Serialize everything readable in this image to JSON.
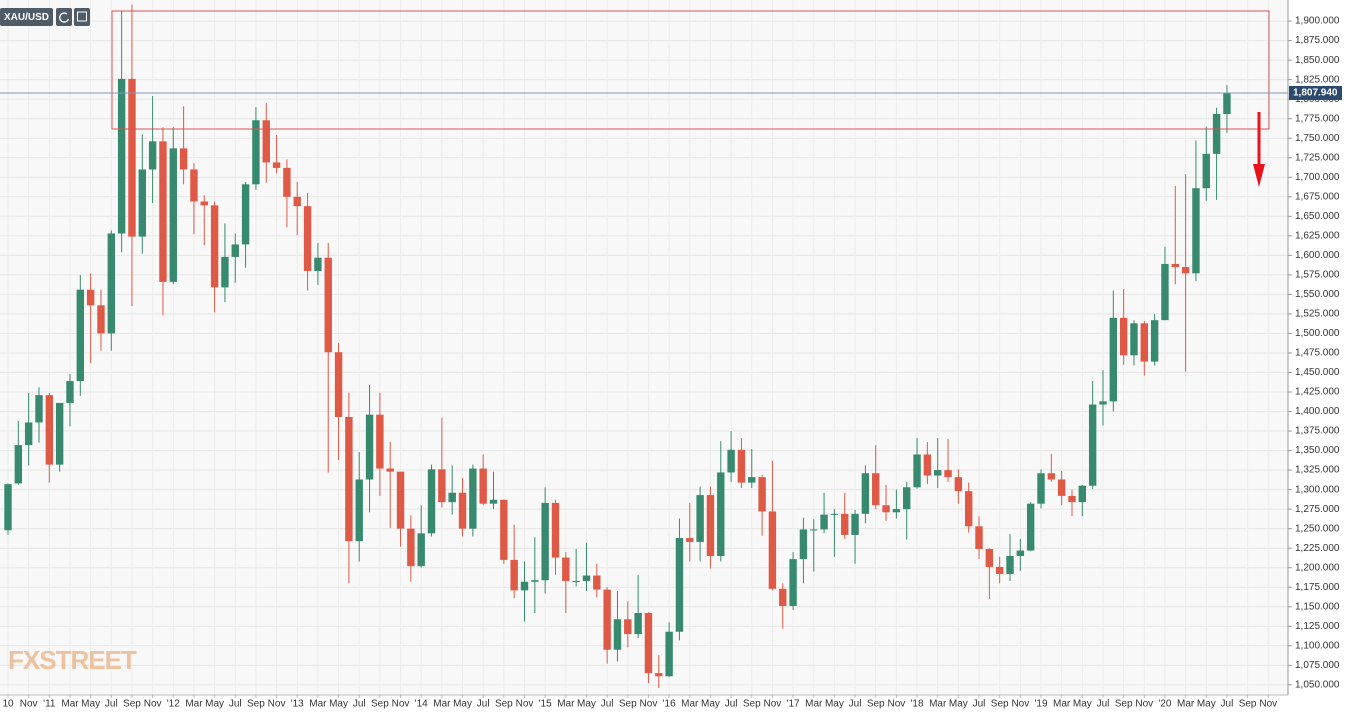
{
  "chart_data": {
    "type": "candlestick",
    "title": "XAU/USD",
    "watermark": "FXSTREET",
    "up_color": "#378a6f",
    "down_color": "#de5a47",
    "grid": true,
    "categories": [
      "10",
      null,
      "Nov",
      null,
      "'11",
      null,
      "Mar",
      null,
      "May",
      null,
      "Jul",
      null,
      "Sep",
      null,
      "Nov",
      null,
      "'12",
      null,
      "Mar",
      null,
      "May",
      null,
      "Jul",
      null,
      "Sep",
      null,
      "Nov",
      null,
      "'13",
      null,
      "Mar",
      null,
      "May",
      null,
      "Jul",
      null,
      "Sep",
      null,
      "Nov",
      null,
      "'14",
      null,
      "Mar",
      null,
      "May",
      null,
      "Jul",
      null,
      "Sep",
      null,
      "Nov",
      null,
      "'15",
      null,
      "Mar",
      null,
      "May",
      null,
      "Jul",
      null,
      "Sep",
      null,
      "Nov",
      null,
      "'16",
      null,
      "Mar",
      null,
      "May",
      null,
      "Jul",
      null,
      "Sep",
      null,
      "Nov",
      null,
      "'17",
      null,
      "Mar",
      null,
      "May",
      null,
      "Jul",
      null,
      "Sep",
      null,
      "Nov",
      null,
      "'18",
      null,
      "Mar",
      null,
      "May",
      null,
      "Jul",
      null,
      "Sep",
      null,
      "Nov",
      null,
      "'19",
      null,
      "Mar",
      null,
      "May",
      null,
      "Jul",
      null,
      "Sep",
      null,
      "Nov",
      null,
      "'20",
      null,
      "Mar",
      null,
      "May",
      null,
      "Jul",
      null,
      "Sep",
      null,
      "Nov"
    ],
    "open": [
      1248,
      1308,
      1357,
      1386,
      1421,
      1332,
      1411,
      1439,
      1556,
      1536,
      1500,
      1628,
      1826,
      1624,
      1710,
      1746,
      1566,
      1737,
      1710,
      1669,
      1664,
      1559,
      1598,
      1614,
      1691,
      1773,
      1719,
      1712,
      1675,
      1663,
      1580,
      1597,
      1476,
      1393,
      1234,
      1313,
      1396,
      1327,
      1323,
      1250,
      1202,
      1244,
      1326,
      1284,
      1296,
      1250,
      1327,
      1282,
      1287,
      1210,
      1171,
      1182,
      1184,
      1283,
      1213,
      1183,
      1183,
      1190,
      1172,
      1095,
      1134,
      1115,
      1142,
      1065,
      1061,
      1118,
      1238,
      1233,
      1293,
      1215,
      1322,
      1351,
      1309,
      1316,
      1272,
      1173,
      1151,
      1211,
      1249,
      1249,
      1268,
      1269,
      1242,
      1269,
      1321,
      1280,
      1271,
      1275,
      1303,
      1345,
      1318,
      1325,
      1316,
      1298,
      1253,
      1224,
      1201,
      1192,
      1215,
      1222,
      1282,
      1321,
      1313,
      1292,
      1284,
      1305,
      1409,
      1413,
      1520,
      1472,
      1513,
      1464,
      1517,
      1589,
      1585,
      1577,
      1686,
      1730,
      1781,
      null,
      null,
      null,
      null
    ],
    "high": [
      1308,
      1388,
      1424,
      1431,
      1424,
      1411,
      1448,
      1575,
      1577,
      1556,
      1632,
      1913,
      1921,
      1755,
      1804,
      1764,
      1764,
      1791,
      1718,
      1677,
      1669,
      1641,
      1628,
      1694,
      1790,
      1795,
      1754,
      1723,
      1694,
      1680,
      1616,
      1616,
      1488,
      1424,
      1348,
      1434,
      1424,
      1361,
      1323,
      1267,
      1280,
      1332,
      1392,
      1331,
      1315,
      1332,
      1345,
      1323,
      1287,
      1255,
      1208,
      1239,
      1303,
      1287,
      1220,
      1224,
      1232,
      1205,
      1175,
      1170,
      1157,
      1191,
      1143,
      1088,
      1130,
      1263,
      1283,
      1304,
      1304,
      1362,
      1375,
      1366,
      1352,
      1319,
      1337,
      1180,
      1220,
      1264,
      1262,
      1296,
      1275,
      1296,
      1274,
      1331,
      1357,
      1306,
      1300,
      1310,
      1366,
      1361,
      1366,
      1365,
      1326,
      1309,
      1266,
      1225,
      1214,
      1243,
      1237,
      1284,
      1326,
      1346,
      1324,
      1300,
      1306,
      1439,
      1453,
      1555,
      1557,
      1517,
      1516,
      1525,
      1611,
      1689,
      1704,
      1747,
      1765,
      1789,
      1818,
      null,
      null,
      null,
      null
    ],
    "low": [
      1242,
      1306,
      1331,
      1360,
      1309,
      1323,
      1381,
      1420,
      1462,
      1478,
      1478,
      1604,
      1535,
      1602,
      1667,
      1523,
      1563,
      1691,
      1627,
      1613,
      1527,
      1540,
      1565,
      1584,
      1684,
      1693,
      1705,
      1636,
      1626,
      1555,
      1562,
      1322,
      1338,
      1180,
      1208,
      1271,
      1292,
      1251,
      1227,
      1182,
      1200,
      1240,
      1277,
      1268,
      1240,
      1240,
      1280,
      1275,
      1205,
      1161,
      1131,
      1142,
      1167,
      1191,
      1142,
      1176,
      1170,
      1162,
      1077,
      1080,
      1098,
      1110,
      1052,
      1046,
      1060,
      1107,
      1208,
      1208,
      1199,
      1208,
      1310,
      1302,
      1302,
      1241,
      1171,
      1122,
      1146,
      1180,
      1195,
      1244,
      1214,
      1237,
      1205,
      1257,
      1275,
      1260,
      1263,
      1236,
      1301,
      1307,
      1302,
      1310,
      1282,
      1245,
      1211,
      1160,
      1180,
      1183,
      1196,
      1221,
      1276,
      1310,
      1280,
      1266,
      1266,
      1301,
      1382,
      1400,
      1460,
      1459,
      1446,
      1459,
      1517,
      1563,
      1451,
      1567,
      1670,
      1671,
      1757,
      null,
      null,
      null,
      null
    ],
    "close": [
      1307,
      1357,
      1386,
      1421,
      1332,
      1411,
      1439,
      1556,
      1536,
      1500,
      1628,
      1826,
      1624,
      1710,
      1746,
      1566,
      1737,
      1710,
      1669,
      1664,
      1559,
      1598,
      1614,
      1691,
      1773,
      1719,
      1712,
      1675,
      1663,
      1580,
      1597,
      1476,
      1393,
      1234,
      1313,
      1396,
      1327,
      1323,
      1250,
      1202,
      1244,
      1326,
      1284,
      1296,
      1250,
      1327,
      1282,
      1287,
      1210,
      1171,
      1182,
      1184,
      1283,
      1213,
      1183,
      1183,
      1190,
      1172,
      1095,
      1134,
      1115,
      1142,
      1065,
      1061,
      1118,
      1238,
      1233,
      1293,
      1215,
      1322,
      1351,
      1309,
      1316,
      1272,
      1173,
      1151,
      1211,
      1249,
      1249,
      1268,
      1269,
      1242,
      1269,
      1321,
      1280,
      1271,
      1275,
      1303,
      1345,
      1318,
      1325,
      1316,
      1298,
      1253,
      1224,
      1201,
      1192,
      1215,
      1222,
      1282,
      1321,
      1313,
      1292,
      1284,
      1305,
      1409,
      1413,
      1520,
      1472,
      1513,
      1464,
      1517,
      1589,
      1585,
      1577,
      1686,
      1730,
      1781,
      1807.94,
      null,
      null,
      null,
      null
    ],
    "last_price": {
      "value": 1807.94,
      "label": "1,807.940"
    },
    "ylim": [
      1037,
      1927
    ],
    "yticks": [
      {
        "value": 1050,
        "label": "1,050.000"
      },
      {
        "value": 1075,
        "label": "1,075.000"
      },
      {
        "value": 1100,
        "label": "1,100.000"
      },
      {
        "value": 1125,
        "label": "1,125.000"
      },
      {
        "value": 1150,
        "label": "1,150.000"
      },
      {
        "value": 1175,
        "label": "1,175.000"
      },
      {
        "value": 1200,
        "label": "1,200.000"
      },
      {
        "value": 1225,
        "label": "1,225.000"
      },
      {
        "value": 1250,
        "label": "1,250.000"
      },
      {
        "value": 1275,
        "label": "1,275.000"
      },
      {
        "value": 1300,
        "label": "1,300.000"
      },
      {
        "value": 1325,
        "label": "1,325.000"
      },
      {
        "value": 1350,
        "label": "1,350.000"
      },
      {
        "value": 1375,
        "label": "1,375.000"
      },
      {
        "value": 1400,
        "label": "1,400.000"
      },
      {
        "value": 1425,
        "label": "1,425.000"
      },
      {
        "value": 1450,
        "label": "1,450.000"
      },
      {
        "value": 1475,
        "label": "1,475.000"
      },
      {
        "value": 1500,
        "label": "1,500.000"
      },
      {
        "value": 1525,
        "label": "1,525.000"
      },
      {
        "value": 1550,
        "label": "1,550.000"
      },
      {
        "value": 1575,
        "label": "1,575.000"
      },
      {
        "value": 1600,
        "label": "1,600.000"
      },
      {
        "value": 1625,
        "label": "1,625.000"
      },
      {
        "value": 1650,
        "label": "1,650.000"
      },
      {
        "value": 1675,
        "label": "1,675.000"
      },
      {
        "value": 1700,
        "label": "1,700.000"
      },
      {
        "value": 1725,
        "label": "1,725.000"
      },
      {
        "value": 1750,
        "label": "1,750.000"
      },
      {
        "value": 1775,
        "label": "1,775.000"
      },
      {
        "value": 1800,
        "label": "1,800.000"
      },
      {
        "value": 1825,
        "label": "1,825.000"
      },
      {
        "value": 1850,
        "label": "1,850.000"
      },
      {
        "value": 1875,
        "label": "1,875.000"
      },
      {
        "value": 1900,
        "label": "1,900.000"
      }
    ]
  }
}
